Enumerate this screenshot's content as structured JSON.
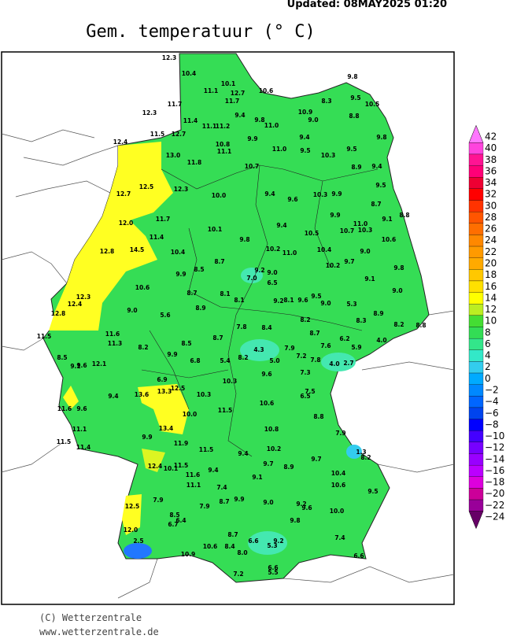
{
  "header": {
    "updated": "Updated: 08MAY2025 01:20",
    "title": "Gem. temperatuur (° C)"
  },
  "footer": {
    "copyright": "(C) Wetterzentrale",
    "url": "www.wetterzentrale.de"
  },
  "colorbar": {
    "labels": [
      "42",
      "40",
      "38",
      "36",
      "34",
      "32",
      "30",
      "28",
      "26",
      "24",
      "22",
      "20",
      "18",
      "16",
      "14",
      "12",
      "10",
      "8",
      "6",
      "4",
      "2",
      "0",
      "−2",
      "−4",
      "−6",
      "−8",
      "−10",
      "−12",
      "−14",
      "−16",
      "−18",
      "−20",
      "−22",
      "−24"
    ],
    "colors": [
      "#ff77ff",
      "#ff44dd",
      "#ff1493",
      "#ff0077",
      "#ee0033",
      "#ff0000",
      "#ff3300",
      "#ff5500",
      "#ff6e00",
      "#ff8800",
      "#ff9a00",
      "#ffaa00",
      "#ffc800",
      "#ffe000",
      "#ffff00",
      "#bbee22",
      "#44dd33",
      "#33dd55",
      "#33e68a",
      "#33e8c8",
      "#33ccee",
      "#00aaff",
      "#0088ff",
      "#0066ff",
      "#0044ee",
      "#0000ff",
      "#4400ff",
      "#7700ff",
      "#9900ff",
      "#bb00ff",
      "#dd00dd",
      "#cc0099",
      "#990099",
      "#660066"
    ]
  },
  "stations": [
    "12.3",
    "10.4",
    "10.1",
    "11.1",
    "12.7",
    "10.6",
    "9.8",
    "11.7",
    "8.3",
    "9.5",
    "10.5",
    "11.7",
    "12.3",
    "9.4",
    "9.8",
    "10.9",
    "9.0",
    "8.8",
    "11.4",
    "11.1",
    "11.2",
    "11.0",
    "12.7",
    "11.5",
    "9.9",
    "9.4",
    "9.8",
    "12.4",
    "10.8",
    "11.1",
    "11.0",
    "9.5",
    "9.5",
    "13.0",
    "11.8",
    "10.7",
    "10.3",
    "8.9",
    "9.4",
    "12.5",
    "12.3",
    "12.7",
    "10.0",
    "9.4",
    "9.6",
    "10.3",
    "9.9",
    "9.5",
    "8.7",
    "9.1",
    "8.8",
    "11.7",
    "12.0",
    "9.9",
    "11.0",
    "10.7",
    "10.3",
    "11.4",
    "10.1",
    "9.4",
    "10.5",
    "10.6",
    "12.8",
    "14.5",
    "10.4",
    "9.8",
    "10.2",
    "11.0",
    "10.4",
    "9.0",
    "9.7",
    "10.2",
    "8.7",
    "8.5",
    "9.9",
    "9.2",
    "9.0",
    "7.0",
    "6.5",
    "9.8",
    "9.1",
    "10.6",
    "12.3",
    "12.4",
    "8.7",
    "8.1",
    "8.1",
    "9.2",
    "8.1",
    "9.6",
    "9.5",
    "9.0",
    "5.3",
    "9.0",
    "8.9",
    "9.0",
    "12.8",
    "5.6",
    "8.9",
    "8.2",
    "8.3",
    "8.2",
    "8.8",
    "7.8",
    "8.4",
    "11.5",
    "11.6",
    "8.7",
    "8.7",
    "6.2",
    "4.0",
    "11.3",
    "8.2",
    "8.5",
    "4.3",
    "7.9",
    "7.6",
    "5.9",
    "9.9",
    "7.2",
    "7.8",
    "8.5",
    "9.6",
    "9.1",
    "12.1",
    "6.8",
    "5.4",
    "8.2",
    "5.0",
    "4.0",
    "2.7",
    "7.3",
    "9.6",
    "6.9",
    "10.3",
    "12.5",
    "13.3",
    "13.6",
    "9.4",
    "10.3",
    "7.5",
    "6.5",
    "11.6",
    "9.6",
    "10.0",
    "11.5",
    "10.6",
    "8.8",
    "11.1",
    "13.4",
    "10.8",
    "7.9",
    "9.9",
    "11.5",
    "11.4",
    "11.9",
    "11.5",
    "10.2",
    "9.4",
    "1.3",
    "8.2",
    "9.7",
    "12.4",
    "10.1",
    "11.5",
    "9.7",
    "8.9",
    "9.4",
    "11.6",
    "9.1",
    "10.4",
    "11.1",
    "7.4",
    "10.6",
    "9.5",
    "7.9",
    "8.7",
    "9.9",
    "9.0",
    "9.2",
    "9.6",
    "12.5",
    "7.9",
    "10.0",
    "8.5",
    "6.4",
    "6.7",
    "9.8",
    "12.0",
    "8.7",
    "6.6",
    "9.2",
    "5.3",
    "7.4",
    "2.5",
    "10.6",
    "8.4",
    "10.9",
    "8.0",
    "6.6",
    "6.6",
    "5.5",
    "7.2"
  ]
}
